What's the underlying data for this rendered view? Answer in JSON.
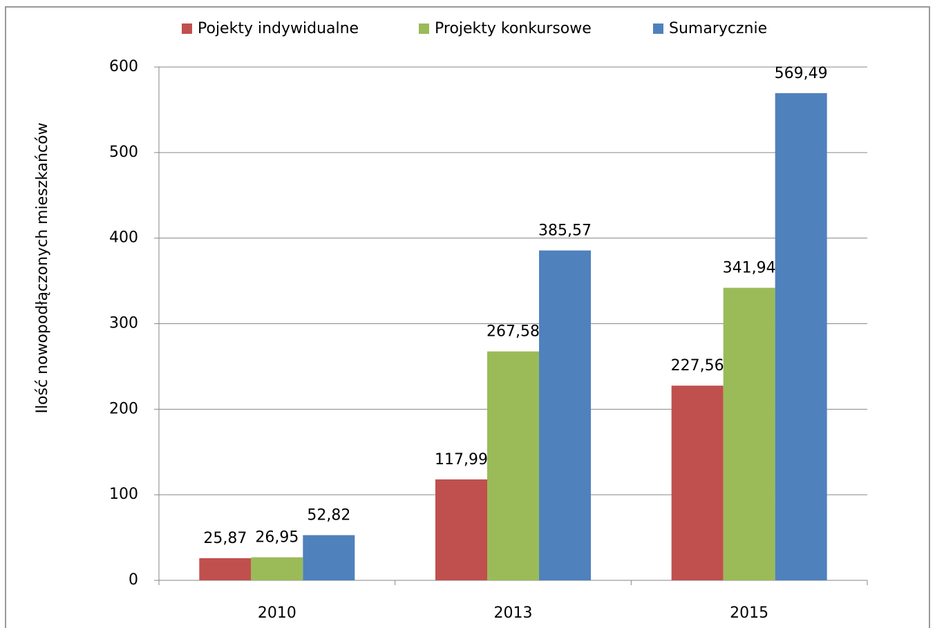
{
  "chart_data": {
    "type": "bar",
    "y_label": "Ilość nowopodłączonych mieszkańców",
    "categories": [
      "2010",
      "2013",
      "2015"
    ],
    "series": [
      {
        "name": "Pojekty indywidualne",
        "color": "#c0504d",
        "values": [
          25.87,
          117.99,
          227.56
        ],
        "value_labels": [
          "25,87",
          "117,99",
          "227,56"
        ]
      },
      {
        "name": "Projekty konkursowe",
        "color": "#9bbb59",
        "values": [
          26.95,
          267.58,
          341.94
        ],
        "value_labels": [
          "26,95",
          "267,58",
          "341,94"
        ]
      },
      {
        "name": "Sumarycznie",
        "color": "#4f81bd",
        "values": [
          52.82,
          385.57,
          569.49
        ],
        "value_labels": [
          "52,82",
          "385,57",
          "569,49"
        ]
      }
    ],
    "ylim": [
      0,
      600
    ],
    "yticks": [
      0,
      100,
      200,
      300,
      400,
      500,
      600
    ],
    "grid": true,
    "legend": "top"
  }
}
